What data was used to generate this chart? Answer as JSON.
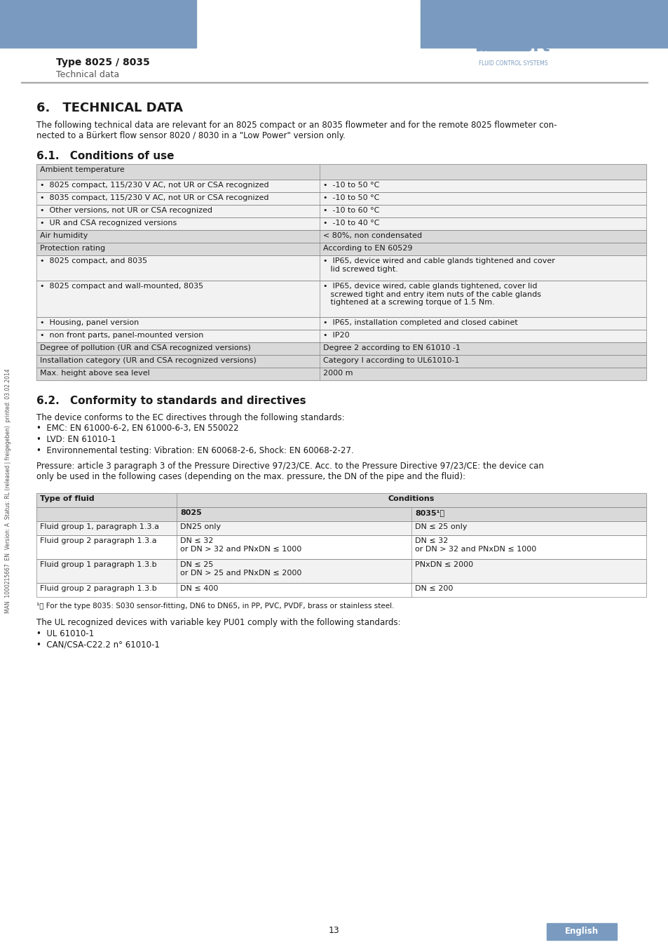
{
  "page_bg": "#ffffff",
  "header_bar_color": "#7a9bbf",
  "header_text_left": "Type 8025 / 8035",
  "header_subtext_left": "Technical data",
  "section6_title": "6. TECHNICAL DATA",
  "section6_intro": "The following technical data are relevant for an 8025 compact or an 8035 flowmeter and for the remote 8025 flowmeter con-\nnected to a Bürkert flow sensor 8020 / 8030 in a \"Low Power\" version only.",
  "section61_title": "6.1. Conditions of use",
  "table1": {
    "col_split": 0.47,
    "rows": [
      {
        "type": "header",
        "left": "Ambient temperature",
        "right": ""
      },
      {
        "type": "bullet_row",
        "left": "•  8025 compact, 115/230 V AC, not UR or CSA recognized",
        "right": "•  -10 to 50 °C"
      },
      {
        "type": "bullet_row",
        "left": "•  8035 compact, 115/230 V AC, not UR or CSA recognized",
        "right": "•  -10 to 50 °C"
      },
      {
        "type": "bullet_row",
        "left": "•  Other versions, not UR or CSA recognized",
        "right": "•  -10 to 60 °C"
      },
      {
        "type": "bullet_row",
        "left": "•  UR and CSA recognized versions",
        "right": "•  -10 to 40 °C"
      },
      {
        "type": "header",
        "left": "Air humidity",
        "right": "< 80%, non condensated"
      },
      {
        "type": "header",
        "left": "Protection rating",
        "right": "According to EN 60529"
      },
      {
        "type": "bullet_row",
        "left": "•  8025 compact, and 8035",
        "right": "•  IP65, device wired and cable glands tightened and cover\n   lid screwed tight."
      },
      {
        "type": "bullet_row",
        "left": "•  8025 compact and wall-mounted, 8035",
        "right": "•  IP65, device wired, cable glands tightened, cover lid\n   screwed tight and entry item nuts of the cable glands\n   tightened at a screwing torque of 1.5 Nm."
      },
      {
        "type": "bullet_row",
        "left": "•  Housing, panel version",
        "right": "•  IP65, installation completed and closed cabinet"
      },
      {
        "type": "bullet_row",
        "left": "•  non front parts, panel-mounted version",
        "right": "•  IP20"
      },
      {
        "type": "header",
        "left": "Degree of pollution (UR and CSA recognized versions)",
        "right": "Degree 2 according to EN 61010 -1"
      },
      {
        "type": "header",
        "left": "Installation category (UR and CSA recognized versions)",
        "right": "Category I according to UL61010-1"
      },
      {
        "type": "header",
        "left": "Max. height above sea level",
        "right": "2000 m"
      }
    ]
  },
  "section62_title": "6.2. Conformity to standards and directives",
  "section62_intro": "The device conforms to the EC directives through the following standards:",
  "section62_bullets": [
    "•  EMC: EN 61000-6-2, EN 61000-6-3, EN 550022",
    "•  LVD: EN 61010-1",
    "•  Environnemental testing: Vibration: EN 60068-2-6, Shock: EN 60068-2-27."
  ],
  "section62_pressure": "Pressure: article 3 paragraph 3 of the Pressure Directive 97/23/CE. Acc. to the Pressure Directive 97/23/CE: the device can\nonly be used in the following cases (depending on the max. pressure, the DN of the pipe and the fluid):",
  "table2": {
    "header_row1": [
      "Type of fluid",
      "Conditions",
      ""
    ],
    "header_row2": [
      "",
      "8025",
      "8035¹⧠"
    ],
    "rows": [
      [
        "Fluid group 1, paragraph 1.3.a",
        "DN25 only",
        "DN ≤ 25 only"
      ],
      [
        "Fluid group 2 paragraph 1.3.a",
        "DN ≤ 32\nor DN > 32 and PNxDN ≤ 1000",
        "DN ≤ 32\nor DN > 32 and PNxDN ≤ 1000"
      ],
      [
        "Fluid group 1 paragraph 1.3.b",
        "DN ≤ 25\nor DN > 25 and PNxDN ≤ 2000",
        "PNxDN ≤ 2000"
      ],
      [
        "Fluid group 2 paragraph 1.3.b",
        "DN ≤ 400",
        "DN ≤ 200"
      ]
    ]
  },
  "footnote": "¹⧠ For the type 8035: S030 sensor-fitting, DN6 to DN65, in PP, PVC, PVDF, brass or stainless steel.",
  "ul_text": "The UL recognized devices with variable key PU01 comply with the following standards:",
  "ul_bullets": [
    "•  UL 61010-1",
    "•  CAN/CSA-C22.2 n° 61010-1"
  ],
  "page_number": "13",
  "sidebar_text": "MAN  1000215667  EN  Version: A  Status: RL (released | freigegeben)  printed: 03.02.2014",
  "english_tab": "English",
  "table_bg_header": "#d9d9d9",
  "table_bg_row": "#f2f2f2",
  "table_border": "#888888",
  "font_size_body": 8.5,
  "font_size_small": 7.5,
  "font_size_section": 11,
  "font_size_heading": 14
}
